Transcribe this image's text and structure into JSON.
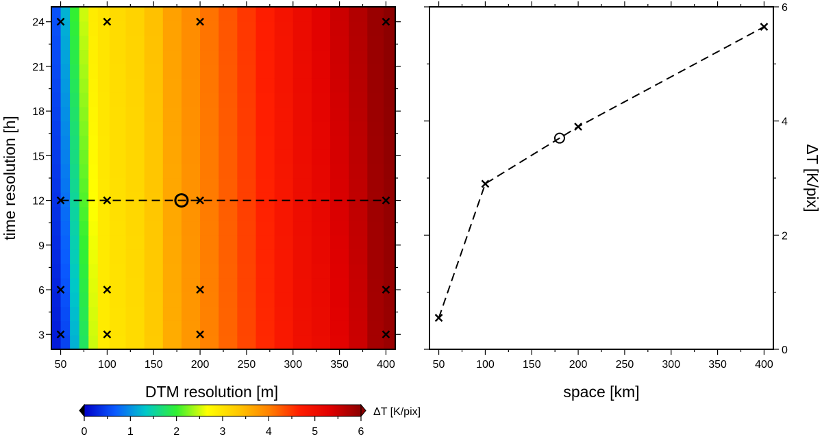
{
  "colors": {
    "colormap": [
      "#0000c8",
      "#0a5aff",
      "#00c8c8",
      "#32f032",
      "#ffff00",
      "#ffc800",
      "#ff8200",
      "#ff1e00",
      "#e00000",
      "#8c0000"
    ],
    "marker": "#000000",
    "line": "#000000"
  },
  "chart_data": [
    {
      "type": "heatmap",
      "xlabel": "DTM resolution [m]",
      "ylabel": "time resolution [h]",
      "xlim": [
        40,
        410
      ],
      "ylim": [
        2,
        25
      ],
      "xticks": [
        50,
        100,
        150,
        200,
        250,
        300,
        350,
        400
      ],
      "yticks": [
        3,
        6,
        9,
        12,
        15,
        18,
        21,
        24
      ],
      "value_label": "ΔT [K/pix]",
      "value_range": [
        0,
        6
      ],
      "colorbar_ticks": [
        0,
        1,
        2,
        3,
        4,
        5,
        6
      ],
      "column_values": {
        "x": [
          45,
          55,
          65,
          75,
          85,
          95,
          110,
          130,
          150,
          170,
          190,
          210,
          230,
          250,
          270,
          290,
          310,
          330,
          350,
          370,
          390,
          405
        ],
        "delta_t_bottom": [
          0.2,
          0.5,
          1.2,
          1.8,
          2.5,
          2.9,
          3.0,
          3.1,
          3.3,
          3.6,
          3.8,
          4.0,
          4.2,
          4.4,
          4.6,
          4.8,
          5.0,
          5.1,
          5.3,
          5.5,
          5.8,
          5.9
        ],
        "delta_t_top": [
          0.6,
          1.2,
          2.0,
          2.5,
          2.9,
          3.0,
          3.1,
          3.2,
          3.4,
          3.7,
          3.9,
          4.1,
          4.3,
          4.5,
          4.7,
          4.9,
          5.1,
          5.3,
          5.5,
          5.7,
          5.9,
          6.0
        ]
      },
      "sample_points": {
        "x": [
          50,
          100,
          200,
          400,
          50,
          100,
          200,
          400,
          50,
          100,
          200,
          400,
          50,
          100,
          200,
          400
        ],
        "y": [
          3,
          3,
          3,
          3,
          6,
          6,
          6,
          6,
          12,
          12,
          12,
          12,
          24,
          24,
          24,
          24
        ]
      },
      "highlight_point": {
        "x": 180,
        "y": 12
      },
      "profile_line": {
        "x": [
          50,
          400
        ],
        "y": [
          12,
          12
        ]
      }
    },
    {
      "type": "line",
      "xlabel": "space [km]",
      "ylabel": "ΔT [K/pix]",
      "xlim": [
        40,
        410
      ],
      "ylim": [
        0,
        6
      ],
      "xticks": [
        50,
        100,
        150,
        200,
        250,
        300,
        350,
        400
      ],
      "yticks": [
        0,
        2,
        4,
        6
      ],
      "yaxis_side": "right",
      "series": [
        {
          "x": [
            50,
            100,
            200,
            400
          ],
          "y": [
            0.55,
            2.9,
            3.9,
            5.65
          ]
        }
      ],
      "highlight_point": {
        "x": 180,
        "y": 3.7
      }
    }
  ]
}
